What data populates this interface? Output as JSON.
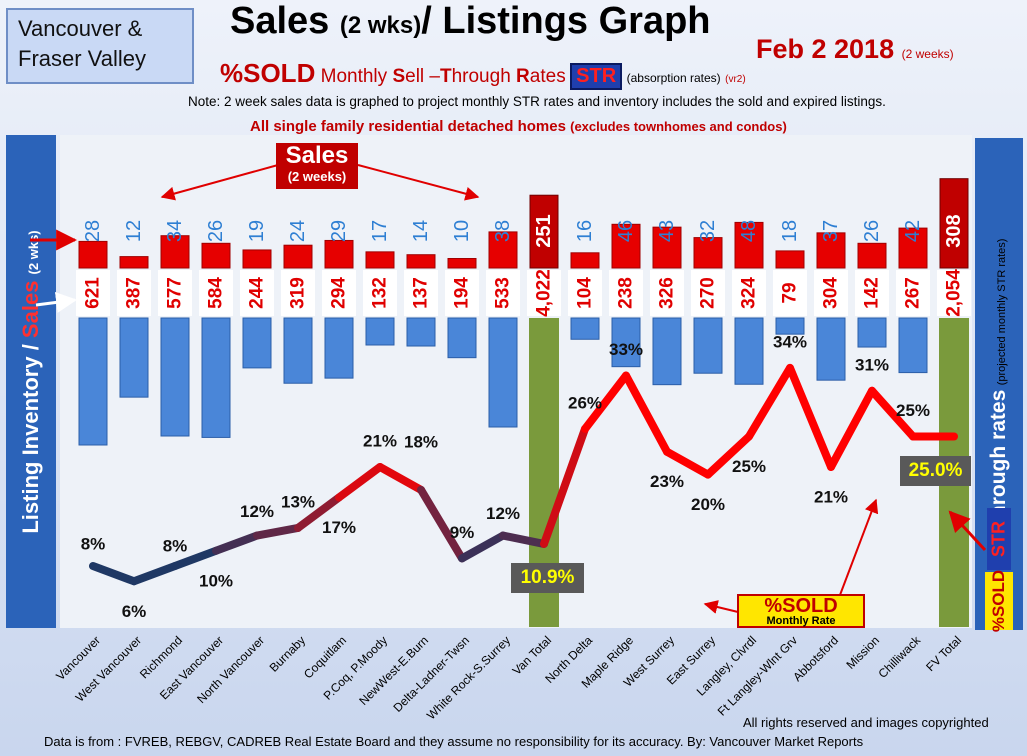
{
  "header": {
    "region_line1": "Vancouver &",
    "region_line2": "Fraser Valley",
    "title_a": "Sales ",
    "title_b": "(2 wks)",
    "title_c": "/ Listings Graph",
    "date": "Feb 2  2018",
    "date_note": "(2 weeks)",
    "pct_sold": "%SOLD",
    "msr_a": " Monthly ",
    "msr_s": "S",
    "msr_b": "ell –",
    "msr_t": "T",
    "msr_c": "hrough ",
    "msr_r": "R",
    "msr_d": "ates",
    "str_badge": "STR",
    "absorption": "(absorption rates)",
    "version": "(vr2)",
    "note": "Note: 2 week sales data is graphed to project monthly STR rates and inventory includes the sold and expired listings.",
    "homes_a": "All single family residential detached homes ",
    "homes_b": "(excludes townhomes and condos)"
  },
  "side": {
    "left_a": "Listing Inventory / ",
    "left_b": "Sales",
    "left_c": "(2  wks)",
    "right_main": "Sell-through rates",
    "right_small": "(projected  monthly STR rates)",
    "str_tag": "STR",
    "sold_tag": "%SOLD"
  },
  "callouts": {
    "sales_a": "Sales",
    "sales_b": "(2 weeks)",
    "sold_a": "%SOLD",
    "sold_b": "Monthly Rate",
    "van_total_str": "10.9%",
    "fv_total_str": "25.0%"
  },
  "footer": {
    "rights": "All rights reserved and  images copyrighted",
    "source": "Data is from : FVREB, REBGV, CADREB Real Estate Board and they assume  no responsibility for its accuracy.  By:  Vancouver Market Reports"
  },
  "colors": {
    "sales_bar": "#e60000",
    "listing_bar": "#4a86d8",
    "total_bar": "#7a9a3c",
    "sales_label": "#2e7fd3",
    "listing_label": "#e00000",
    "line_low": "#1f3864",
    "line_high": "#ff0000"
  },
  "chart_data": {
    "type": "bar",
    "categories": [
      "Vancouver",
      "West Vancouver",
      "Richmond",
      "East Vancouver",
      "North Vancouver",
      "Burnaby",
      "Coquitlam",
      "P.Coq, P.Moody",
      "NewWest-E.Burn",
      "Delta-Ladner-Twsn",
      "White Rock-S.Surrey",
      "Van Total",
      "North Delta",
      "Maple Ridge",
      "West Surrey",
      "East Surrey",
      "Langley, Clvrdl",
      "Ft Langley-Wlnt Grv",
      "Abbotsford",
      "Mission",
      "Chilliwack",
      "FV Total"
    ],
    "series": [
      {
        "name": "Sales",
        "values": [
          28,
          12,
          34,
          26,
          19,
          24,
          29,
          17,
          14,
          10,
          38,
          251,
          16,
          46,
          43,
          32,
          48,
          18,
          37,
          26,
          42,
          308
        ]
      },
      {
        "name": "Listing Inventory",
        "values": [
          621,
          387,
          577,
          584,
          244,
          319,
          294,
          132,
          137,
          194,
          533,
          4022,
          104,
          238,
          326,
          270,
          324,
          79,
          304,
          142,
          267,
          2054
        ]
      },
      {
        "name": "%SOLD",
        "values": [
          8,
          6,
          8,
          10,
          12,
          13,
          17,
          21,
          18,
          9,
          12,
          10.9,
          26,
          33,
          23,
          20,
          25,
          34,
          21,
          31,
          25,
          25
        ]
      }
    ],
    "sales_labels": [
      "28",
      "12",
      "34",
      "26",
      "19",
      "24",
      "29",
      "17",
      "14",
      "10",
      "38",
      "251",
      "16",
      "46",
      "43",
      "32",
      "48",
      "18",
      "37",
      "26",
      "42",
      "308"
    ],
    "listing_labels": [
      "621",
      "387",
      "577",
      "584",
      "244",
      "319",
      "294",
      "132",
      "137",
      "194",
      "533",
      "4,022",
      "104",
      "238",
      "326",
      "270",
      "324",
      "79",
      "304",
      "142",
      "267",
      "2,054"
    ],
    "str_labels": [
      "8%",
      "6%",
      "8%",
      "10%",
      "12%",
      "13%",
      "17%",
      "21%",
      "18%",
      "9%",
      "12%",
      "",
      "26%",
      "33%",
      "23%",
      "20%",
      "25%",
      "34%",
      "21%",
      "31%",
      "25%",
      ""
    ],
    "total_indices": [
      11,
      21
    ],
    "title": "Sales (2 wks)/ Listings Graph",
    "ylabel": "Listing Inventory / Sales (2  wks)",
    "y2label": "Sell-through rates",
    "legend": "none",
    "grid": false
  }
}
